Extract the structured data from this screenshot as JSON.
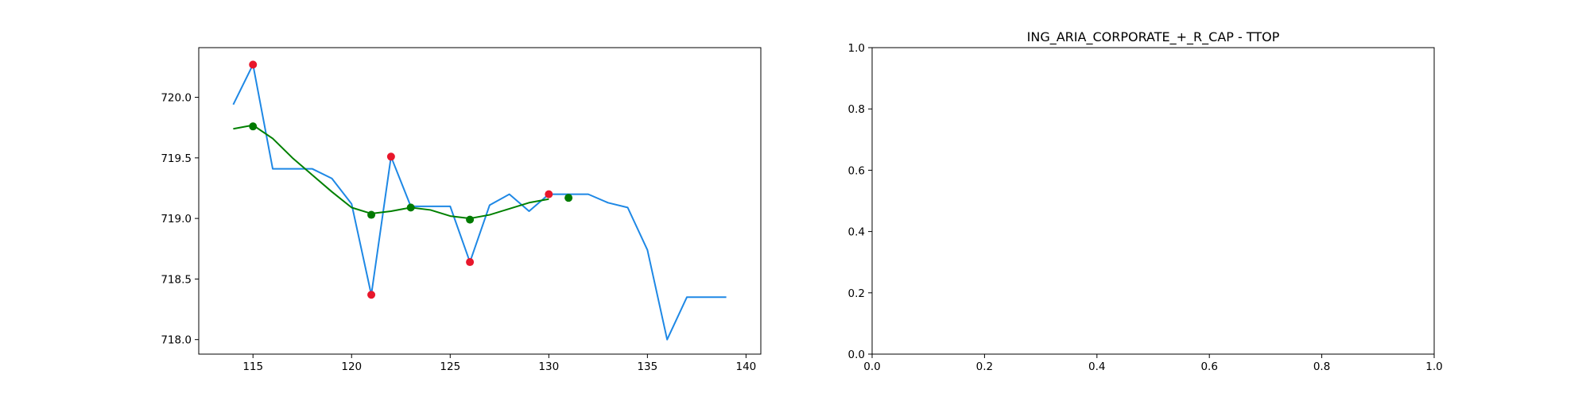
{
  "chart_data": [
    {
      "type": "line",
      "xlim": [
        112.25,
        140.75
      ],
      "ylim": [
        717.88,
        720.41
      ],
      "x_ticks": [
        115,
        120,
        125,
        130,
        135,
        140
      ],
      "y_ticks": [
        718.0,
        718.5,
        719.0,
        719.5,
        720.0
      ],
      "x_tick_labels": [
        "115",
        "120",
        "125",
        "130",
        "135",
        "140"
      ],
      "y_tick_labels": [
        "718.0",
        "718.5",
        "719.0",
        "719.5",
        "720.0"
      ],
      "grid": false,
      "series": [
        {
          "kind": "line",
          "color": "#1e88e5",
          "x": [
            114,
            115,
            116,
            117,
            118,
            119,
            120,
            121,
            122,
            123,
            124,
            125,
            126,
            127,
            128,
            129,
            130,
            131,
            132,
            133,
            134,
            135,
            136,
            137,
            138,
            139
          ],
          "y": [
            719.94,
            720.27,
            719.41,
            719.41,
            719.41,
            719.33,
            719.12,
            718.37,
            719.51,
            719.1,
            719.1,
            719.1,
            718.64,
            719.11,
            719.2,
            719.06,
            719.2,
            719.2,
            719.2,
            719.13,
            719.09,
            718.74,
            718.0,
            718.35,
            718.35,
            718.35
          ]
        },
        {
          "kind": "line",
          "color": "#008000",
          "x": [
            114,
            115,
            116,
            117,
            118,
            119,
            120,
            121,
            122,
            123,
            124,
            125,
            126,
            127,
            128,
            129,
            130
          ],
          "y": [
            719.74,
            719.77,
            719.66,
            719.5,
            719.36,
            719.22,
            719.09,
            719.04,
            719.06,
            719.09,
            719.07,
            719.02,
            719.0,
            719.03,
            719.08,
            719.13,
            719.16
          ]
        },
        {
          "kind": "scatter",
          "color": "#e8172b",
          "x": [
            115,
            121,
            122,
            126,
            130
          ],
          "y": [
            720.27,
            718.37,
            719.51,
            718.64,
            719.2
          ]
        },
        {
          "kind": "scatter",
          "color": "#007a00",
          "x": [
            115,
            121,
            123,
            126,
            131
          ],
          "y": [
            719.76,
            719.03,
            719.09,
            718.99,
            719.17
          ]
        }
      ]
    },
    {
      "type": "line",
      "title": "ING_ARIA_CORPORATE_+_R_CAP - TTOP",
      "xlim": [
        0,
        1
      ],
      "ylim": [
        0,
        1
      ],
      "x_ticks": [
        0,
        0.2,
        0.4,
        0.6,
        0.8,
        1.0
      ],
      "y_ticks": [
        0,
        0.2,
        0.4,
        0.6,
        0.8,
        1.0
      ],
      "x_tick_labels": [
        "0.0",
        "0.2",
        "0.4",
        "0.6",
        "0.8",
        "1.0"
      ],
      "y_tick_labels": [
        "0.0",
        "0.2",
        "0.4",
        "0.6",
        "0.8",
        "1.0"
      ],
      "grid": false,
      "series": []
    }
  ]
}
